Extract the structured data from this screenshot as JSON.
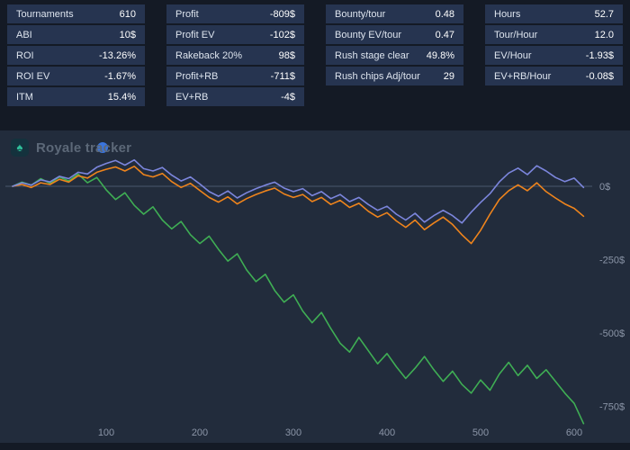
{
  "watermark": {
    "text": "Royale tracker"
  },
  "stats": {
    "groups": [
      {
        "rows": [
          {
            "label": "Tournaments",
            "value": "610"
          },
          {
            "label": "ABI",
            "value": "10$"
          },
          {
            "label": "ROI",
            "value": "-13.26%"
          },
          {
            "label": "ROI EV",
            "value": "-1.67%"
          },
          {
            "label": "ITM",
            "value": "15.4%"
          }
        ]
      },
      {
        "rows": [
          {
            "label": "Profit",
            "value": "-809$"
          },
          {
            "label": "Profit EV",
            "value": "-102$"
          },
          {
            "label": "Rakeback 20%",
            "value": "98$"
          },
          {
            "label": "Profit+RB",
            "value": "-711$"
          },
          {
            "label": "EV+RB",
            "value": "-4$"
          }
        ]
      },
      {
        "rows": [
          {
            "label": "Bounty/tour",
            "value": "0.48"
          },
          {
            "label": "Bounty EV/tour",
            "value": "0.47"
          },
          {
            "label": "Rush stage clear",
            "value": "49.8%"
          },
          {
            "label": "Rush chips Adj/tour",
            "value": "29"
          }
        ]
      },
      {
        "rows": [
          {
            "label": "Hours",
            "value": "52.7"
          },
          {
            "label": "Tour/Hour",
            "value": "12.0"
          },
          {
            "label": "EV/Hour",
            "value": "-1.93$"
          },
          {
            "label": "EV+RB/Hour",
            "value": "-0.08$"
          }
        ]
      }
    ]
  },
  "chart_data": {
    "type": "line",
    "title": "",
    "xlim": [
      0,
      620
    ],
    "ylim": [
      100,
      -850
    ],
    "grid": "zero-line-only",
    "legend": "none",
    "x_ticks": [
      100,
      200,
      300,
      400,
      500,
      600
    ],
    "y_ticks": [
      {
        "label": "0$",
        "value": 0
      },
      {
        "label": "-250$",
        "value": -250
      },
      {
        "label": "-500$",
        "value": -500
      },
      {
        "label": "-750$",
        "value": -750
      }
    ],
    "x": [
      0,
      10,
      20,
      30,
      40,
      50,
      60,
      70,
      80,
      90,
      100,
      110,
      120,
      130,
      140,
      150,
      160,
      170,
      180,
      190,
      200,
      210,
      220,
      230,
      240,
      250,
      260,
      270,
      280,
      290,
      300,
      310,
      320,
      330,
      340,
      350,
      360,
      370,
      380,
      390,
      400,
      410,
      420,
      430,
      440,
      450,
      460,
      470,
      480,
      490,
      500,
      510,
      520,
      530,
      540,
      550,
      560,
      570,
      580,
      590,
      600,
      610
    ],
    "series": [
      {
        "name": "Profit",
        "color": "#3fae54",
        "values": [
          0,
          14,
          4,
          26,
          10,
          32,
          18,
          42,
          12,
          30,
          -12,
          -45,
          -22,
          -65,
          -95,
          -70,
          -115,
          -145,
          -120,
          -165,
          -195,
          -170,
          -215,
          -255,
          -230,
          -285,
          -325,
          -300,
          -355,
          -395,
          -370,
          -425,
          -465,
          -430,
          -485,
          -535,
          -565,
          -515,
          -560,
          -605,
          -570,
          -615,
          -655,
          -620,
          -580,
          -625,
          -665,
          -630,
          -675,
          -705,
          -660,
          -695,
          -640,
          -600,
          -645,
          -610,
          -655,
          -625,
          -665,
          -705,
          -740,
          -809
        ]
      },
      {
        "name": "Profit EV",
        "color": "#ef841c",
        "values": [
          0,
          6,
          -4,
          12,
          6,
          24,
          14,
          36,
          28,
          48,
          58,
          66,
          52,
          68,
          40,
          32,
          44,
          16,
          -4,
          10,
          -14,
          -38,
          -54,
          -36,
          -60,
          -42,
          -28,
          -16,
          -6,
          -26,
          -38,
          -28,
          -52,
          -38,
          -62,
          -48,
          -72,
          -58,
          -85,
          -105,
          -90,
          -118,
          -140,
          -115,
          -148,
          -125,
          -105,
          -130,
          -165,
          -195,
          -150,
          -95,
          -45,
          -15,
          5,
          -15,
          12,
          -18,
          -40,
          -60,
          -75,
          -102
        ]
      },
      {
        "name": "EV+RB",
        "color": "#7c86dd",
        "values": [
          0,
          12,
          4,
          22,
          15,
          34,
          26,
          48,
          42,
          65,
          78,
          88,
          72,
          90,
          60,
          52,
          64,
          38,
          18,
          32,
          8,
          -18,
          -34,
          -16,
          -40,
          -22,
          -8,
          4,
          14,
          -6,
          -18,
          -8,
          -32,
          -18,
          -42,
          -28,
          -52,
          -38,
          -62,
          -82,
          -68,
          -95,
          -115,
          -92,
          -122,
          -100,
          -82,
          -100,
          -125,
          -88,
          -55,
          -25,
          15,
          45,
          62,
          40,
          70,
          52,
          30,
          16,
          28,
          -4
        ]
      }
    ]
  }
}
